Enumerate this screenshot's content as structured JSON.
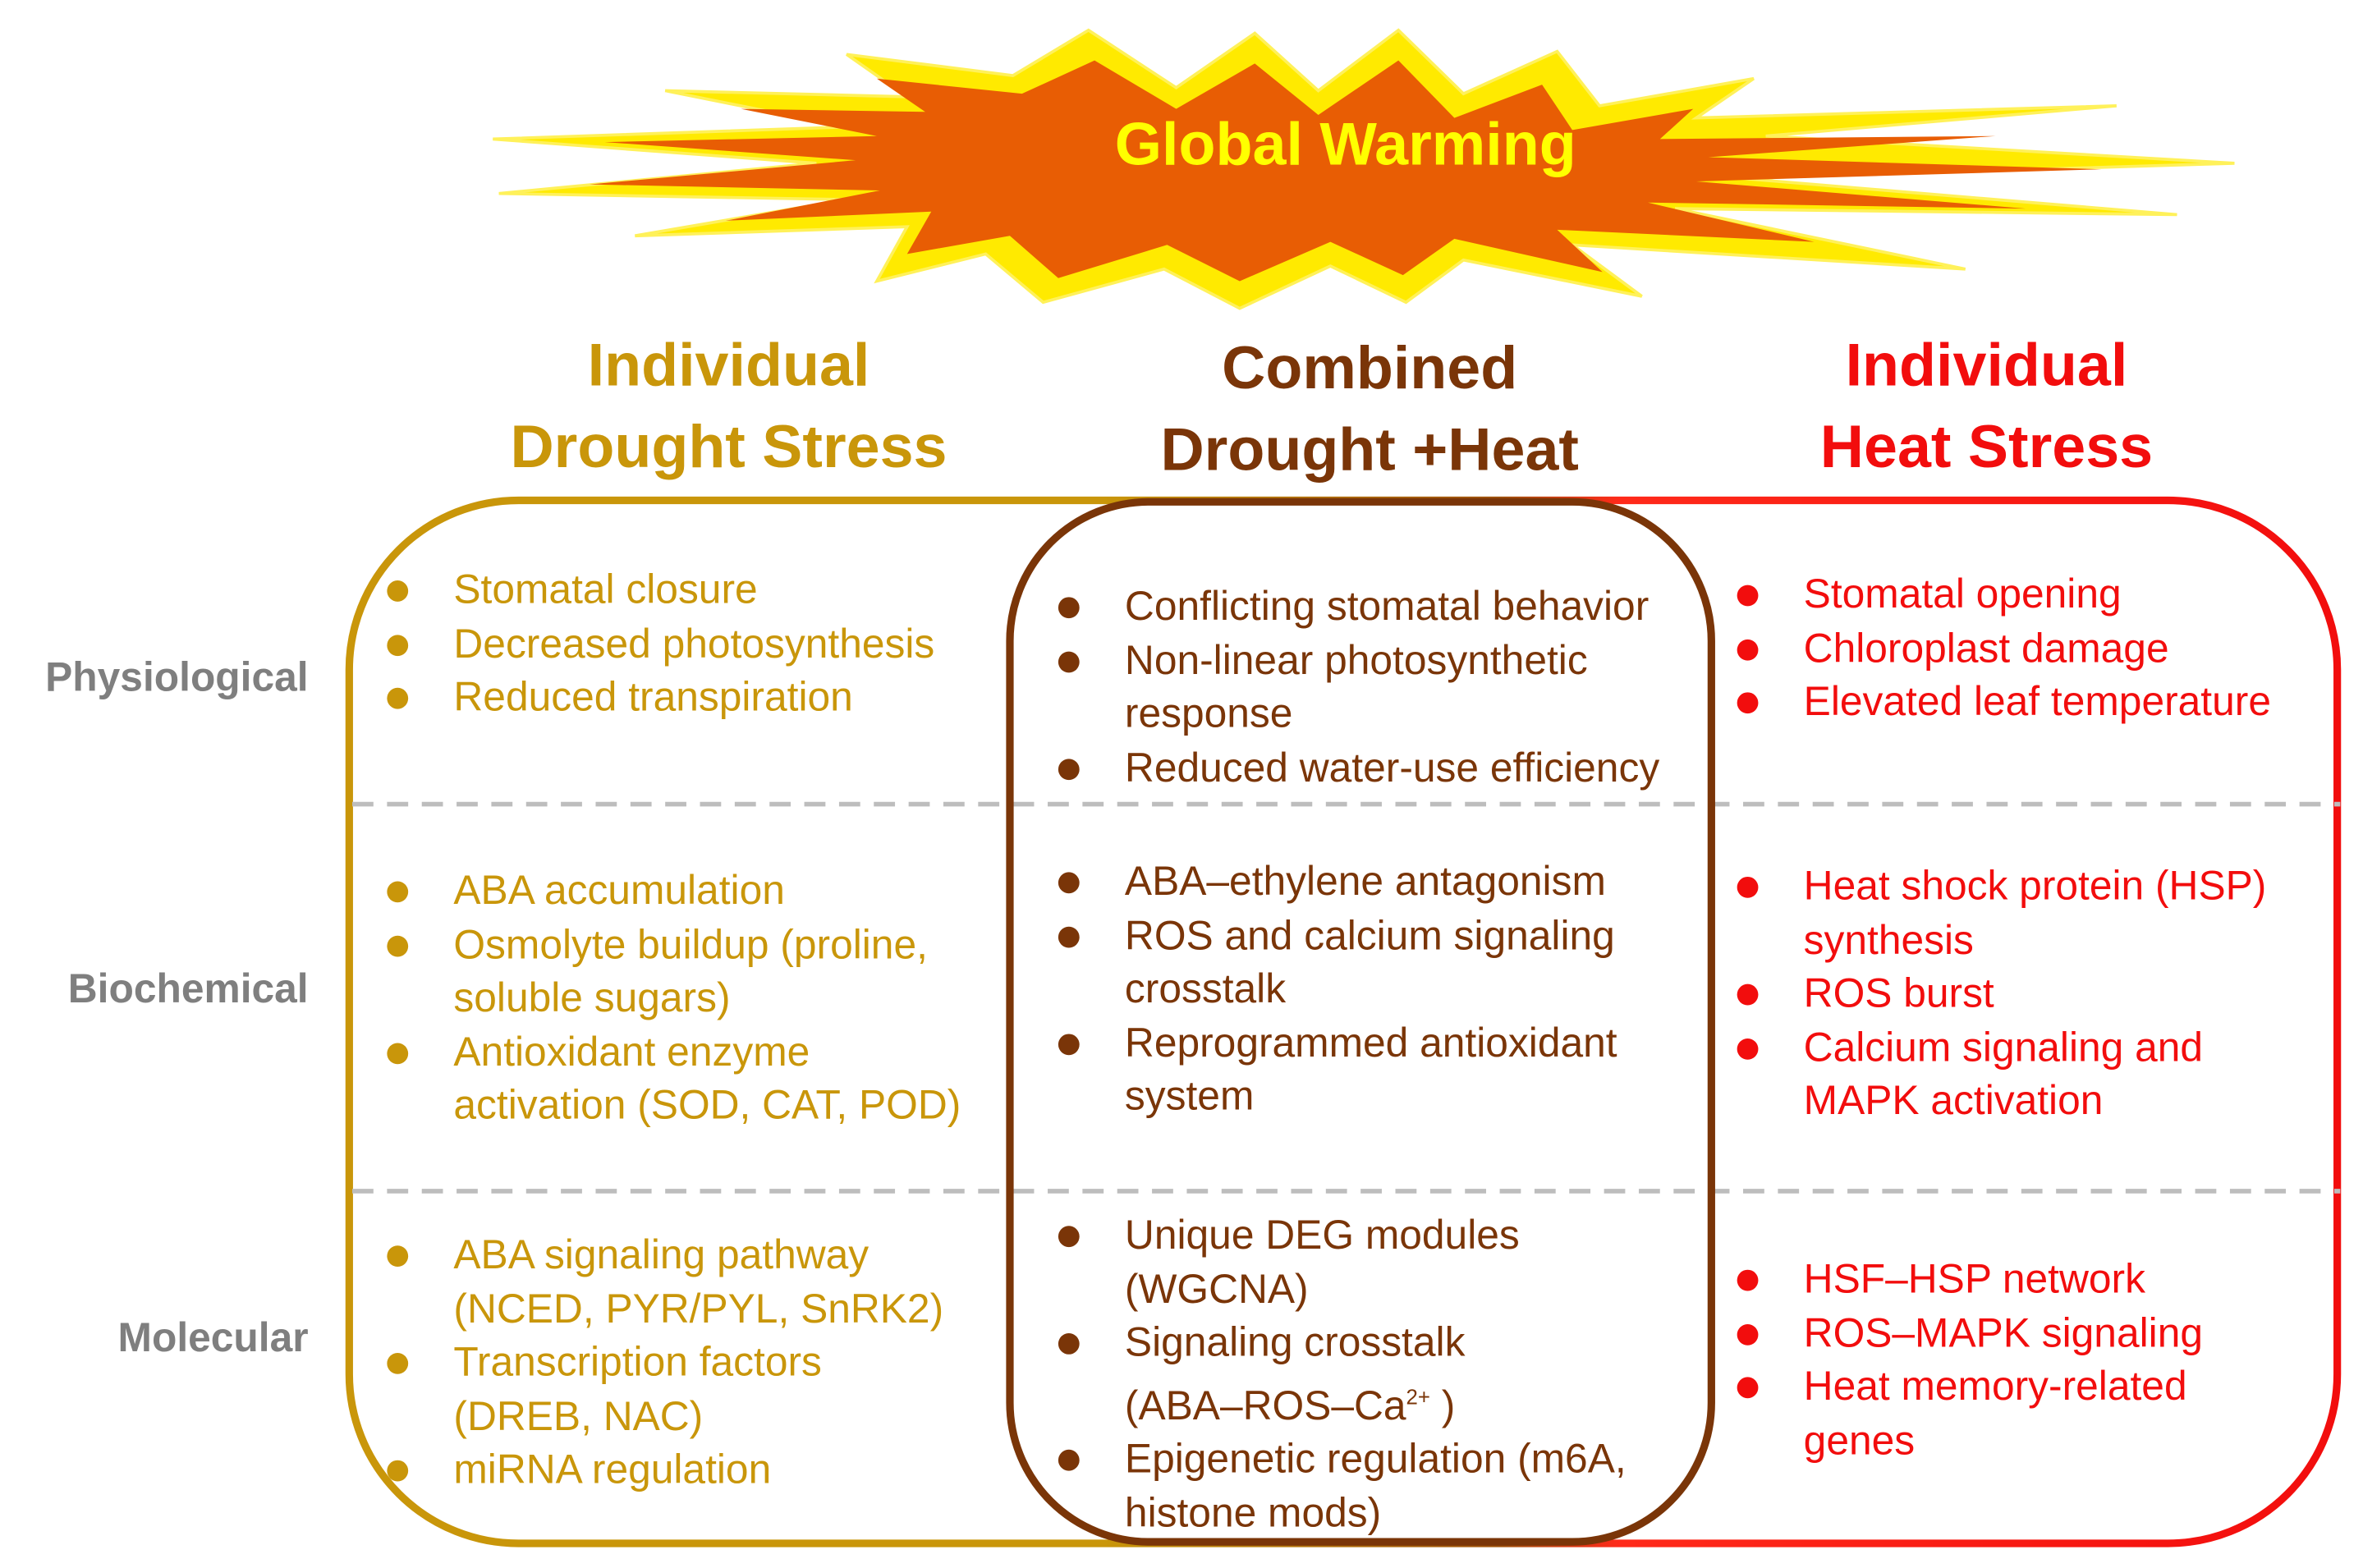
{
  "title": "Global Warming",
  "colors": {
    "drought": "#c9960a",
    "combined": "#7a3508",
    "heat": "#f20d0d",
    "burst_fill": "#e85d04",
    "burst_glow": "#ffea00",
    "row_label": "#7f7f7f",
    "divider": "#bdbdbd"
  },
  "columns": [
    {
      "id": "drought",
      "line1": "Individual",
      "line2": "Drought Stress"
    },
    {
      "id": "combined",
      "line1": "Combined",
      "line2": "Drought +Heat"
    },
    {
      "id": "heat",
      "line1": "Individual",
      "line2": "Heat Stress"
    }
  ],
  "rows": [
    {
      "label": "Physiological"
    },
    {
      "label": "Biochemical"
    },
    {
      "label": "Molecular"
    }
  ],
  "cells": {
    "physiological": {
      "drought": [
        "Stomatal closure",
        "Decreased photosynthesis",
        "Reduced transpiration"
      ],
      "combined": [
        [
          "Conflicting stomatal behavior"
        ],
        [
          "Non-linear photosynthetic",
          "response"
        ],
        [
          "Reduced water-use efficiency"
        ]
      ],
      "heat": [
        "Stomatal opening",
        "Chloroplast damage",
        "Elevated leaf temperature"
      ]
    },
    "biochemical": {
      "drought": [
        [
          "ABA accumulation"
        ],
        [
          "Osmolyte buildup (proline,",
          "soluble sugars)"
        ],
        [
          "Antioxidant enzyme",
          "activation (SOD, CAT, POD)"
        ]
      ],
      "combined": [
        [
          "ABA–ethylene antagonism"
        ],
        [
          "ROS and calcium signaling",
          "crosstalk"
        ],
        [
          "Reprogrammed antioxidant",
          "system"
        ]
      ],
      "heat": [
        [
          "Heat shock protein (HSP)",
          "synthesis"
        ],
        [
          "ROS burst"
        ],
        [
          "Calcium signaling and",
          "MAPK activation"
        ]
      ]
    },
    "molecular": {
      "drought": [
        [
          "ABA signaling pathway",
          "(NCED, PYR/PYL, SnRK2)"
        ],
        [
          "Transcription factors",
          "(DREB, NAC)"
        ],
        [
          "miRNA regulation"
        ]
      ],
      "combined": [
        [
          "Unique DEG modules",
          "(WGCNA)"
        ],
        [
          "Signaling crosstalk",
          "(ABA–ROS–Ca",
          "2+",
          " )"
        ],
        [
          "Epigenetic regulation (m6A,",
          "histone mods)"
        ]
      ],
      "heat": [
        [
          "HSF–HSP network"
        ],
        [
          "ROS–MAPK signaling"
        ],
        [
          "Heat memory-related",
          "genes"
        ]
      ]
    }
  }
}
